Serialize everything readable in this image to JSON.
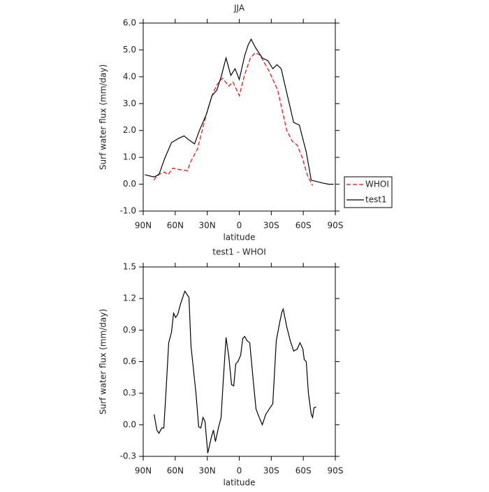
{
  "chart_data": [
    {
      "type": "line",
      "title": "JJA",
      "xlabel": "latitude",
      "ylabel": "Surf water flux (mm/day)",
      "xlim": [
        90,
        -90
      ],
      "ylim": [
        -1,
        6
      ],
      "xticks": [
        {
          "value": 90,
          "label": "90N"
        },
        {
          "value": 60,
          "label": "60N"
        },
        {
          "value": 30,
          "label": "30N"
        },
        0,
        {
          "value": -30,
          "label": "30S"
        },
        {
          "value": -60,
          "label": "60S"
        },
        {
          "value": -90,
          "label": "90S"
        }
      ],
      "yticks": [
        {
          "value": -1,
          "label": "-1.0"
        },
        {
          "value": 0,
          "label": "0.0"
        },
        {
          "value": 1,
          "label": "1.0"
        },
        {
          "value": 2,
          "label": "2.0"
        },
        {
          "value": 3,
          "label": "3.0"
        },
        {
          "value": 4,
          "label": "4.0"
        },
        {
          "value": 5,
          "label": "5.0"
        },
        {
          "value": 6,
          "label": "6.0"
        }
      ],
      "legend": "right",
      "series": [
        {
          "name": "WHOI",
          "color": "#ff0000",
          "dashed": true,
          "x": [
            80,
            76.5,
            70,
            66.8,
            62.2,
            57,
            48.5,
            46,
            39.3,
            30.8,
            25.5,
            21,
            15.7,
            9.8,
            5.9,
            0,
            -5.2,
            -10.5,
            -15,
            -19.6,
            -28.1,
            -36,
            -44.5,
            -49.7,
            -54.3,
            -58.9,
            -64.1,
            -68.7
          ],
          "values": [
            0.15,
            0.35,
            0.45,
            0.35,
            0.6,
            0.55,
            0.5,
            0.8,
            1.3,
            2.6,
            3.3,
            3.7,
            3.95,
            3.65,
            3.8,
            3.3,
            4.1,
            4.7,
            4.9,
            4.8,
            4.2,
            3.5,
            2.0,
            1.6,
            1.45,
            1.0,
            0.3,
            -0.05
          ]
        },
        {
          "name": "test1",
          "color": "#000000",
          "dashed": false,
          "x": [
            88.4,
            80,
            75.3,
            70,
            63.5,
            57,
            51.7,
            47.1,
            41.9,
            37.3,
            30.8,
            25.5,
            21,
            17,
            12.4,
            7.9,
            3.9,
            0,
            -5.2,
            -8.5,
            -11.1,
            -15,
            -21.6,
            -26.8,
            -31.4,
            -35.3,
            -39.3,
            -44.5,
            -51,
            -56.3,
            -62.8,
            -67.4,
            -77.2,
            -83.8,
            -88.4
          ],
          "values": [
            0.35,
            0.27,
            0.35,
            0.95,
            1.55,
            1.7,
            1.8,
            1.65,
            1.5,
            2.0,
            2.6,
            3.3,
            3.5,
            4.0,
            4.7,
            4.05,
            4.3,
            3.9,
            4.8,
            5.2,
            5.4,
            5.1,
            4.7,
            4.6,
            4.3,
            4.45,
            4.3,
            3.4,
            2.3,
            2.2,
            1.2,
            0.15,
            0.05,
            0,
            0
          ]
        }
      ]
    },
    {
      "type": "line",
      "title": "test1 - WHOI",
      "xlabel": "latitude",
      "ylabel": "Surf water flux (mm/day)",
      "xlim": [
        90,
        -90
      ],
      "ylim": [
        -0.3,
        1.5
      ],
      "xticks": [
        {
          "value": 90,
          "label": "90N"
        },
        {
          "value": 60,
          "label": "60N"
        },
        {
          "value": 30,
          "label": "30N"
        },
        0,
        {
          "value": -30,
          "label": "30S"
        },
        {
          "value": -60,
          "label": "60S"
        },
        {
          "value": -90,
          "label": "90S"
        }
      ],
      "yticks": [
        -0.3,
        {
          "value": 0,
          "label": "0.0"
        },
        0.3,
        0.6,
        0.9,
        1.2,
        1.5
      ],
      "series": [
        {
          "color": "#000000",
          "x": [
            79.8,
            77.2,
            75.3,
            72.6,
            70.7,
            68.7,
            66.1,
            63.5,
            61.5,
            59.6,
            57.6,
            55,
            51,
            47.1,
            45.2,
            40.6,
            38,
            36,
            34,
            32.1,
            29.5,
            26.2,
            24.2,
            22.3,
            19.6,
            17,
            15.1,
            12.4,
            9.8,
            7.2,
            5.2,
            3.3,
            1.3,
            -1.3,
            -3.3,
            -5.2,
            -7.2,
            -9.8,
            -13.1,
            -15.7,
            -18.3,
            -21.6,
            -24.9,
            -28.1,
            -31.4,
            -34.7,
            -38,
            -39.9,
            -41.2,
            -44.5,
            -47.8,
            -51,
            -54.3,
            -56.9,
            -59.6,
            -60.9,
            -62.8,
            -64.8,
            -67.4,
            -68.7,
            -70,
            -72
          ],
          "values": [
            0.1,
            -0.05,
            -0.08,
            -0.03,
            -0.03,
            0.3,
            0.78,
            0.88,
            1.06,
            1.02,
            1.05,
            1.15,
            1.27,
            1.21,
            0.75,
            0.3,
            -0.02,
            -0.03,
            0.07,
            0.03,
            -0.27,
            -0.12,
            -0.05,
            -0.16,
            -0.03,
            0.07,
            0.4,
            0.83,
            0.65,
            0.38,
            0.37,
            0.58,
            0.6,
            0.66,
            0.82,
            0.84,
            0.8,
            0.78,
            0.42,
            0.15,
            0.08,
            0,
            0.1,
            0.15,
            0.2,
            0.8,
            0.98,
            1.07,
            1.1,
            0.93,
            0.8,
            0.7,
            0.72,
            0.78,
            0.72,
            0.62,
            0.6,
            0.3,
            0.1,
            0.07,
            0.16,
            0.17
          ]
        }
      ]
    }
  ]
}
